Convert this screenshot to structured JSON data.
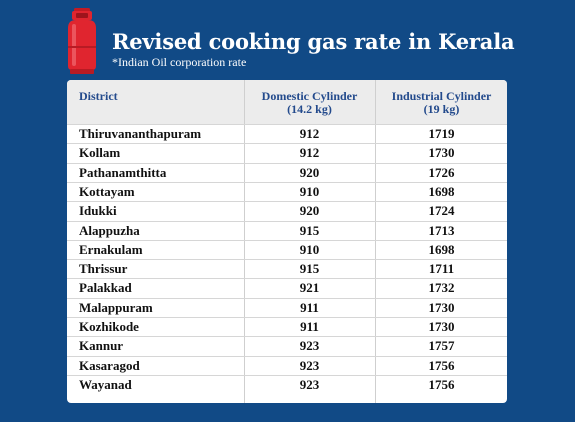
{
  "title": "Revised cooking gas rate in Kerala",
  "subtitle": "*Indian Oil corporation rate",
  "icon": "gas-cylinder-icon",
  "colors": {
    "background": "#114a86",
    "header_text": "#234a8c",
    "cylinder": "#d91f2a"
  },
  "chart_data": {
    "type": "table",
    "title": "Revised cooking gas rate in Kerala",
    "subtitle": "*Indian Oil corporation rate",
    "columns": [
      {
        "line1": "District",
        "line2": ""
      },
      {
        "line1": "Domestic Cylinder",
        "line2": "(14.2 kg)"
      },
      {
        "line1": "Industrial Cylinder",
        "line2": "(19 kg)"
      }
    ],
    "rows": [
      [
        "Thiruvananthapuram",
        "912",
        "1719"
      ],
      [
        "Kollam",
        "912",
        "1730"
      ],
      [
        "Pathanamthitta",
        "920",
        "1726"
      ],
      [
        "Kottayam",
        "910",
        "1698"
      ],
      [
        "Idukki",
        "920",
        "1724"
      ],
      [
        "Alappuzha",
        "915",
        "1713"
      ],
      [
        "Ernakulam",
        "910",
        "1698"
      ],
      [
        "Thrissur",
        "915",
        "1711"
      ],
      [
        "Palakkad",
        "921",
        "1732"
      ],
      [
        "Malappuram",
        "911",
        "1730"
      ],
      [
        "Kozhikode",
        "911",
        "1730"
      ],
      [
        "Kannur",
        "923",
        "1757"
      ],
      [
        "Kasaragod",
        "923",
        "1756"
      ],
      [
        "Wayanad",
        "923",
        "1756"
      ]
    ]
  }
}
